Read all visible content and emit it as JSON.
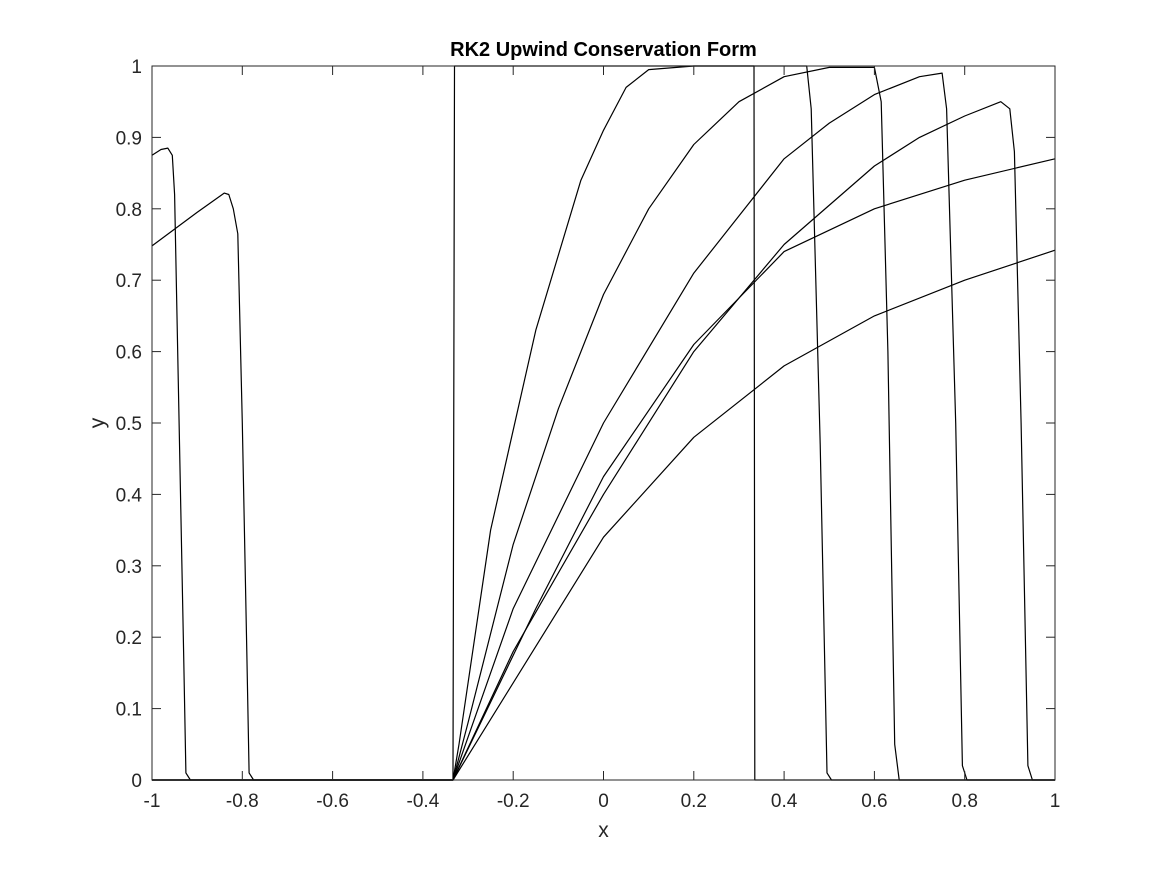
{
  "chart_data": {
    "type": "line",
    "title": "RK2 Upwind Conservation Form",
    "xlabel": "x",
    "ylabel": "y",
    "xlim": [
      -1,
      1
    ],
    "ylim": [
      0,
      1
    ],
    "x_ticks": [
      -1,
      -0.8,
      -0.6,
      -0.4,
      -0.2,
      0,
      0.2,
      0.4,
      0.6,
      0.8,
      1
    ],
    "x_tick_labels": [
      "-1",
      "-0.8",
      "-0.6",
      "-0.4",
      "-0.2",
      "0",
      "0.2",
      "0.4",
      "0.6",
      "0.8",
      "1"
    ],
    "y_ticks": [
      0,
      0.1,
      0.2,
      0.3,
      0.4,
      0.5,
      0.6,
      0.7,
      0.8,
      0.9,
      1
    ],
    "y_tick_labels": [
      "0",
      "0.1",
      "0.2",
      "0.3",
      "0.4",
      "0.5",
      "0.6",
      "0.7",
      "0.8",
      "0.9",
      "1"
    ],
    "grid": false,
    "line_color": "#000000",
    "series": [
      {
        "points": [
          [
            -1,
            0
          ],
          [
            -0.3333,
            0
          ],
          [
            -0.3333,
            0.01
          ],
          [
            -0.33,
            1
          ],
          [
            0.3333,
            1
          ],
          [
            0.335,
            0
          ],
          [
            1,
            0
          ]
        ]
      },
      {
        "points": [
          [
            -1,
            0
          ],
          [
            -0.3333,
            0
          ],
          [
            -0.32,
            0.05
          ],
          [
            -0.25,
            0.35
          ],
          [
            -0.15,
            0.63
          ],
          [
            -0.05,
            0.84
          ],
          [
            0.0,
            0.91
          ],
          [
            0.05,
            0.97
          ],
          [
            0.1,
            0.995
          ],
          [
            0.2,
            1
          ],
          [
            0.45,
            1
          ],
          [
            0.46,
            0.94
          ],
          [
            0.48,
            0.47
          ],
          [
            0.495,
            0.01
          ],
          [
            0.505,
            0
          ],
          [
            1,
            0
          ]
        ]
      },
      {
        "points": [
          [
            -1,
            0
          ],
          [
            -0.3333,
            0
          ],
          [
            -0.3,
            0.08
          ],
          [
            -0.2,
            0.33
          ],
          [
            -0.1,
            0.52
          ],
          [
            0,
            0.68
          ],
          [
            0.1,
            0.8
          ],
          [
            0.2,
            0.89
          ],
          [
            0.3,
            0.95
          ],
          [
            0.4,
            0.985
          ],
          [
            0.5,
            0.998
          ],
          [
            0.6,
            0.998
          ],
          [
            0.615,
            0.95
          ],
          [
            0.63,
            0.6
          ],
          [
            0.645,
            0.05
          ],
          [
            0.655,
            0
          ],
          [
            1,
            0
          ]
        ]
      },
      {
        "points": [
          [
            -1,
            0
          ],
          [
            -0.3333,
            0
          ],
          [
            -0.2,
            0.24
          ],
          [
            0,
            0.5
          ],
          [
            0.2,
            0.71
          ],
          [
            0.3,
            0.79
          ],
          [
            0.4,
            0.87
          ],
          [
            0.5,
            0.92
          ],
          [
            0.6,
            0.96
          ],
          [
            0.7,
            0.985
          ],
          [
            0.75,
            0.99
          ],
          [
            0.76,
            0.94
          ],
          [
            0.78,
            0.5
          ],
          [
            0.795,
            0.02
          ],
          [
            0.805,
            0
          ],
          [
            1,
            0
          ]
        ]
      },
      {
        "points": [
          [
            -1,
            0
          ],
          [
            -0.3333,
            0
          ],
          [
            -0.2,
            0.18
          ],
          [
            0,
            0.4
          ],
          [
            0.2,
            0.6
          ],
          [
            0.4,
            0.75
          ],
          [
            0.6,
            0.86
          ],
          [
            0.7,
            0.9
          ],
          [
            0.8,
            0.93
          ],
          [
            0.88,
            0.95
          ],
          [
            0.9,
            0.94
          ],
          [
            0.91,
            0.88
          ],
          [
            0.925,
            0.5
          ],
          [
            0.94,
            0.02
          ],
          [
            0.95,
            0
          ],
          [
            1,
            0
          ]
        ]
      },
      {
        "points": [
          [
            -1,
            0.875
          ],
          [
            -0.98,
            0.883
          ],
          [
            -0.965,
            0.885
          ],
          [
            -0.955,
            0.875
          ],
          [
            -0.95,
            0.82
          ],
          [
            -0.94,
            0.5
          ],
          [
            -0.93,
            0.18
          ],
          [
            -0.925,
            0.01
          ],
          [
            -0.915,
            0
          ],
          [
            -0.3333,
            0
          ],
          [
            -0.15,
            0.24
          ],
          [
            0,
            0.425
          ],
          [
            0.2,
            0.61
          ],
          [
            0.4,
            0.74
          ],
          [
            0.6,
            0.8
          ],
          [
            0.8,
            0.84
          ],
          [
            1,
            0.87
          ]
        ]
      },
      {
        "points": [
          [
            -1,
            0.748
          ],
          [
            -0.9,
            0.795
          ],
          [
            -0.84,
            0.822
          ],
          [
            -0.83,
            0.82
          ],
          [
            -0.82,
            0.8
          ],
          [
            -0.81,
            0.765
          ],
          [
            -0.8,
            0.5
          ],
          [
            -0.79,
            0.18
          ],
          [
            -0.785,
            0.01
          ],
          [
            -0.775,
            0
          ],
          [
            -0.3333,
            0
          ],
          [
            0,
            0.34
          ],
          [
            0.2,
            0.48
          ],
          [
            0.4,
            0.58
          ],
          [
            0.6,
            0.65
          ],
          [
            0.8,
            0.7
          ],
          [
            1,
            0.742
          ]
        ]
      }
    ]
  }
}
